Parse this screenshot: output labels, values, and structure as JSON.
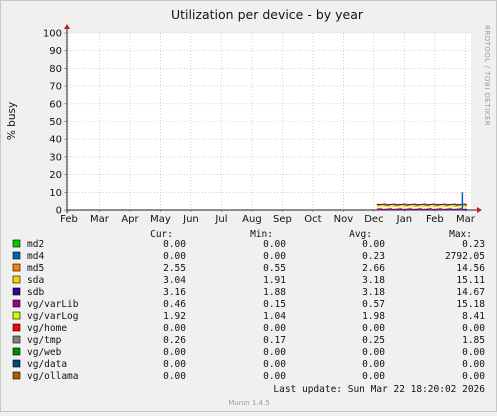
{
  "chart_data": {
    "type": "line",
    "title": "Utilization per device - by year",
    "ylabel": "% busy",
    "ylim": [
      0,
      100
    ],
    "yticks": [
      0,
      10,
      20,
      30,
      40,
      50,
      60,
      70,
      80,
      90,
      100
    ],
    "x_tick_labels": [
      "Feb",
      "Mar",
      "Apr",
      "May",
      "Jun",
      "Jul",
      "Aug",
      "Sep",
      "Oct",
      "Nov",
      "Dec",
      "Jan",
      "Feb",
      "Mar"
    ],
    "grid": true,
    "legend_headers": {
      "cur": "Cur:",
      "min": "Min:",
      "avg": "Avg:",
      "max": "Max:"
    },
    "series": [
      {
        "name": "md2",
        "color": "#00cc00",
        "cur": "0.00",
        "min": "0.00",
        "avg": "0.00",
        "max": "0.23",
        "level": 0
      },
      {
        "name": "md4",
        "color": "#0066b3",
        "cur": "0.00",
        "min": "0.00",
        "avg": "0.23",
        "max": "2792.05",
        "level": 0
      },
      {
        "name": "md5",
        "color": "#ff8000",
        "cur": "2.55",
        "min": "0.55",
        "avg": "2.66",
        "max": "14.56",
        "level": 2.66
      },
      {
        "name": "sda",
        "color": "#ffcc00",
        "cur": "3.04",
        "min": "1.91",
        "avg": "3.18",
        "max": "15.11",
        "level": 3.18
      },
      {
        "name": "sdb",
        "color": "#330099",
        "cur": "3.16",
        "min": "1.88",
        "avg": "3.18",
        "max": "14.67",
        "level": 3.18
      },
      {
        "name": "vg/varLib",
        "color": "#990099",
        "cur": "0.46",
        "min": "0.15",
        "avg": "0.57",
        "max": "15.18",
        "level": 0.57
      },
      {
        "name": "vg/varLog",
        "color": "#ccff00",
        "cur": "1.92",
        "min": "1.04",
        "avg": "1.98",
        "max": "8.41",
        "level": 1.98
      },
      {
        "name": "vg/home",
        "color": "#ff0000",
        "cur": "0.00",
        "min": "0.00",
        "avg": "0.00",
        "max": "0.00",
        "level": 0
      },
      {
        "name": "vg/tmp",
        "color": "#808080",
        "cur": "0.26",
        "min": "0.17",
        "avg": "0.25",
        "max": "1.85",
        "level": 0.25
      },
      {
        "name": "vg/web",
        "color": "#008f00",
        "cur": "0.00",
        "min": "0.00",
        "avg": "0.00",
        "max": "0.00",
        "level": 0
      },
      {
        "name": "vg/data",
        "color": "#00487d",
        "cur": "0.00",
        "min": "0.00",
        "avg": "0.00",
        "max": "0.00",
        "level": 0
      },
      {
        "name": "vg/ollama",
        "color": "#b35a00",
        "cur": "0.00",
        "min": "0.00",
        "avg": "0.00",
        "max": "0.00",
        "level": 0
      }
    ],
    "spike": {
      "series": "md4",
      "x_month_index": 13,
      "value": 10
    },
    "last_update": "Last update:  Sun Mar 22 18:20:02 2026",
    "watermark": "RRDTOOL / TOBI OETIKER",
    "footer": "Munin 1.4.5"
  }
}
